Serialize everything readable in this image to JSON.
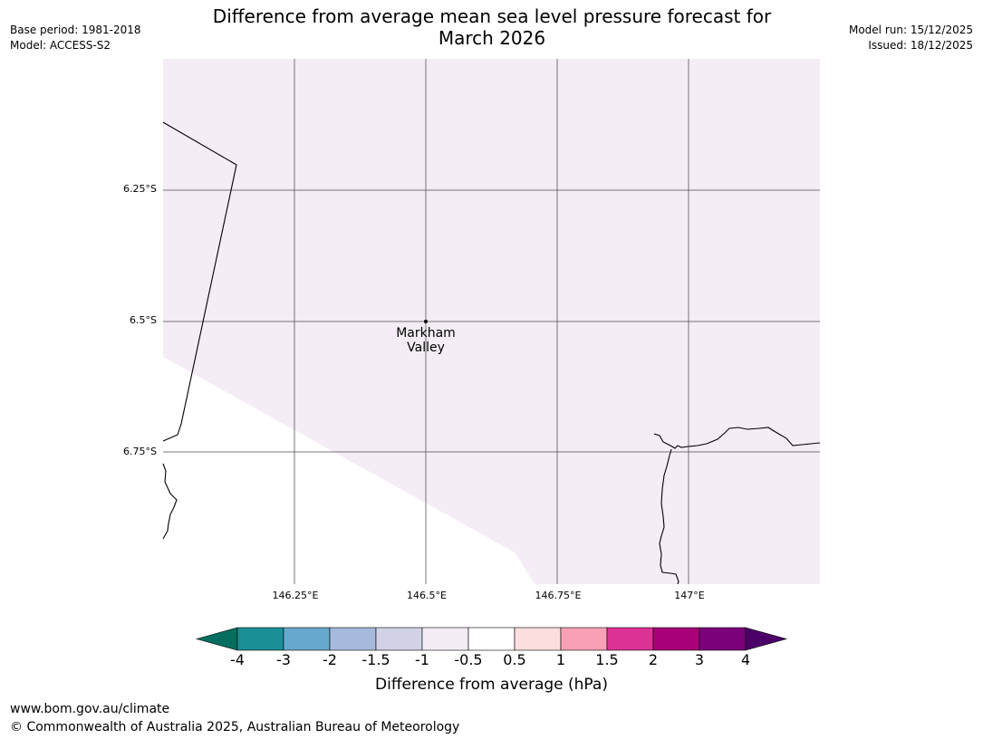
{
  "header": {
    "base_period": "Base period: 1981-2018",
    "model": "Model: ACCESS-S2",
    "title_line1": "Difference from average mean sea level pressure forecast for",
    "title_line2": "March 2026",
    "model_run": "Model run: 15/12/2025",
    "issued": "Issued: 18/12/2025"
  },
  "map": {
    "lat_labels": [
      "6.25°S",
      "6.5°S",
      "6.75°S"
    ],
    "lon_labels": [
      "146.25°E",
      "146.5°E",
      "146.75°E",
      "147°E"
    ],
    "location": {
      "name_line1": "Markham",
      "name_line2": "Valley"
    },
    "fill_color": "#f4edf5",
    "ocean_color": "#ffffff"
  },
  "colorbar": {
    "ticks": [
      "-4",
      "-3",
      "-2",
      "-1.5",
      "-1",
      "-0.5",
      "0.5",
      "1",
      "1.5",
      "2",
      "3",
      "4"
    ],
    "colors": [
      "#066e5e",
      "#1a9096",
      "#67a8cf",
      "#a6badc",
      "#d2d2e6",
      "#f4edf5",
      "#ffffff",
      "#fcdede",
      "#f8a0b5",
      "#dc3294",
      "#a80079",
      "#7b017a",
      "#4b0067"
    ],
    "label": "Difference from average (hPa)"
  },
  "footer": {
    "url": "www.bom.gov.au/climate",
    "copyright": "© Commonwealth of Australia 2025, Australian Bureau of Meteorology"
  }
}
